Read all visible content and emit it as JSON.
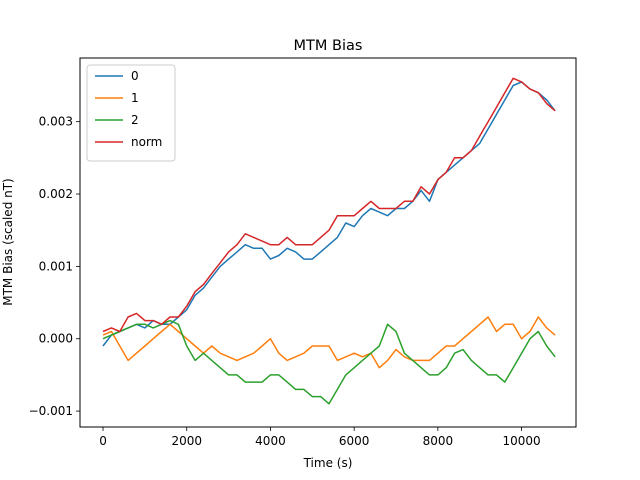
{
  "chart_data": {
    "type": "line",
    "title": "MTM Bias",
    "xlabel": "Time (s)",
    "ylabel": "MTM Bias (scaled nT)",
    "xlim": [
      -550,
      11300
    ],
    "ylim": [
      -0.00122,
      0.00388
    ],
    "xticks": [
      {
        "value": 0,
        "label": "0"
      },
      {
        "value": 2000,
        "label": "2000"
      },
      {
        "value": 4000,
        "label": "4000"
      },
      {
        "value": 6000,
        "label": "6000"
      },
      {
        "value": 8000,
        "label": "8000"
      },
      {
        "value": 10000,
        "label": "10000"
      }
    ],
    "yticks": [
      {
        "value": -0.001,
        "label": "−0.001"
      },
      {
        "value": 0.0,
        "label": "0.000"
      },
      {
        "value": 0.001,
        "label": "0.001"
      },
      {
        "value": 0.002,
        "label": "0.002"
      },
      {
        "value": 0.003,
        "label": "0.003"
      }
    ],
    "grid": false,
    "legend_position": "upper-left",
    "series": [
      {
        "name": "0",
        "color": "#1f77b4",
        "x": [
          0,
          200,
          400,
          600,
          800,
          1000,
          1200,
          1400,
          1600,
          1800,
          2000,
          2200,
          2400,
          2600,
          2800,
          3000,
          3200,
          3400,
          3600,
          3800,
          4000,
          4200,
          4400,
          4600,
          4800,
          5000,
          5200,
          5400,
          5600,
          5800,
          6000,
          6200,
          6400,
          6600,
          6800,
          7000,
          7200,
          7400,
          7600,
          7800,
          8000,
          8200,
          8400,
          8600,
          8800,
          9000,
          9200,
          9400,
          9600,
          9800,
          10000,
          10200,
          10400,
          10600,
          10800
        ],
        "y": [
          -0.0001,
          5e-05,
          0.0001,
          0.00015,
          0.0002,
          0.00015,
          0.00025,
          0.0002,
          0.0002,
          0.0003,
          0.0004,
          0.0006,
          0.0007,
          0.00085,
          0.001,
          0.0011,
          0.0012,
          0.0013,
          0.00125,
          0.00125,
          0.0011,
          0.00115,
          0.00125,
          0.0012,
          0.0011,
          0.0011,
          0.0012,
          0.0013,
          0.0014,
          0.0016,
          0.00155,
          0.0017,
          0.0018,
          0.00175,
          0.0017,
          0.0018,
          0.0018,
          0.0019,
          0.00205,
          0.0019,
          0.0022,
          0.0023,
          0.0024,
          0.0025,
          0.0026,
          0.0027,
          0.0029,
          0.0031,
          0.0033,
          0.0035,
          0.00355,
          0.00345,
          0.0034,
          0.0033,
          0.00315
        ]
      },
      {
        "name": "1",
        "color": "#ff7f0e",
        "x": [
          0,
          200,
          400,
          600,
          800,
          1000,
          1200,
          1400,
          1600,
          1800,
          2000,
          2200,
          2400,
          2600,
          2800,
          3000,
          3200,
          3400,
          3600,
          3800,
          4000,
          4200,
          4400,
          4600,
          4800,
          5000,
          5200,
          5400,
          5600,
          5800,
          6000,
          6200,
          6400,
          6600,
          6800,
          7000,
          7200,
          7400,
          7600,
          7800,
          8000,
          8200,
          8400,
          8600,
          8800,
          9000,
          9200,
          9400,
          9600,
          9800,
          10000,
          10200,
          10400,
          10600,
          10800
        ],
        "y": [
          5e-05,
          0.0001,
          -0.0001,
          -0.0003,
          -0.0002,
          -0.0001,
          0.0,
          0.0001,
          0.0002,
          0.0001,
          0.0,
          -0.0001,
          -0.0002,
          -0.0001,
          -0.0002,
          -0.00025,
          -0.0003,
          -0.00025,
          -0.0002,
          -0.0001,
          0.0,
          -0.0002,
          -0.0003,
          -0.00025,
          -0.0002,
          -0.0001,
          -0.0001,
          -0.0001,
          -0.0003,
          -0.00025,
          -0.0002,
          -0.00025,
          -0.0002,
          -0.0004,
          -0.0003,
          -0.00015,
          -0.00025,
          -0.0003,
          -0.0003,
          -0.0003,
          -0.0002,
          -0.0001,
          -0.0001,
          0.0,
          0.0001,
          0.0002,
          0.0003,
          0.0001,
          0.0002,
          0.0002,
          0.0,
          0.0001,
          0.0003,
          0.00015,
          5e-05
        ]
      },
      {
        "name": "2",
        "color": "#2ca02c",
        "x": [
          0,
          200,
          400,
          600,
          800,
          1000,
          1200,
          1400,
          1600,
          1800,
          2000,
          2200,
          2400,
          2600,
          2800,
          3000,
          3200,
          3400,
          3600,
          3800,
          4000,
          4200,
          4400,
          4600,
          4800,
          5000,
          5200,
          5400,
          5600,
          5800,
          6000,
          6200,
          6400,
          6600,
          6800,
          7000,
          7200,
          7400,
          7600,
          7800,
          8000,
          8200,
          8400,
          8600,
          8800,
          9000,
          9200,
          9400,
          9600,
          9800,
          10000,
          10200,
          10400,
          10600,
          10800
        ],
        "y": [
          0.0,
          5e-05,
          0.0001,
          0.00015,
          0.0002,
          0.0002,
          0.00015,
          0.0002,
          0.00025,
          0.0002,
          -0.0001,
          -0.0003,
          -0.0002,
          -0.0003,
          -0.0004,
          -0.0005,
          -0.0005,
          -0.0006,
          -0.0006,
          -0.0006,
          -0.0005,
          -0.0005,
          -0.0006,
          -0.0007,
          -0.0007,
          -0.0008,
          -0.0008,
          -0.0009,
          -0.0007,
          -0.0005,
          -0.0004,
          -0.0003,
          -0.0002,
          -0.0001,
          0.0002,
          0.0001,
          -0.0002,
          -0.0003,
          -0.0004,
          -0.0005,
          -0.0005,
          -0.0004,
          -0.0002,
          -0.00015,
          -0.0003,
          -0.0004,
          -0.0005,
          -0.0005,
          -0.0006,
          -0.0004,
          -0.0002,
          0.0,
          0.0001,
          -0.0001,
          -0.00025
        ]
      },
      {
        "name": "norm",
        "color": "#d62728",
        "x": [
          0,
          200,
          400,
          600,
          800,
          1000,
          1200,
          1400,
          1600,
          1800,
          2000,
          2200,
          2400,
          2600,
          2800,
          3000,
          3200,
          3400,
          3600,
          3800,
          4000,
          4200,
          4400,
          4600,
          4800,
          5000,
          5200,
          5400,
          5600,
          5800,
          6000,
          6200,
          6400,
          6600,
          6800,
          7000,
          7200,
          7400,
          7600,
          7800,
          8000,
          8200,
          8400,
          8600,
          8800,
          9000,
          9200,
          9400,
          9600,
          9800,
          10000,
          10200,
          10400,
          10600,
          10800
        ],
        "y": [
          0.0001,
          0.00015,
          0.0001,
          0.0003,
          0.00035,
          0.00025,
          0.00025,
          0.0002,
          0.0003,
          0.0003,
          0.00045,
          0.00065,
          0.00075,
          0.0009,
          0.00105,
          0.0012,
          0.0013,
          0.00145,
          0.0014,
          0.00135,
          0.0013,
          0.0013,
          0.0014,
          0.0013,
          0.0013,
          0.0013,
          0.0014,
          0.0015,
          0.0017,
          0.0017,
          0.0017,
          0.0018,
          0.0019,
          0.0018,
          0.0018,
          0.0018,
          0.0019,
          0.0019,
          0.0021,
          0.002,
          0.0022,
          0.0023,
          0.0025,
          0.0025,
          0.0026,
          0.0028,
          0.003,
          0.0032,
          0.0034,
          0.0036,
          0.00355,
          0.00345,
          0.0034,
          0.00325,
          0.00315
        ]
      }
    ]
  }
}
